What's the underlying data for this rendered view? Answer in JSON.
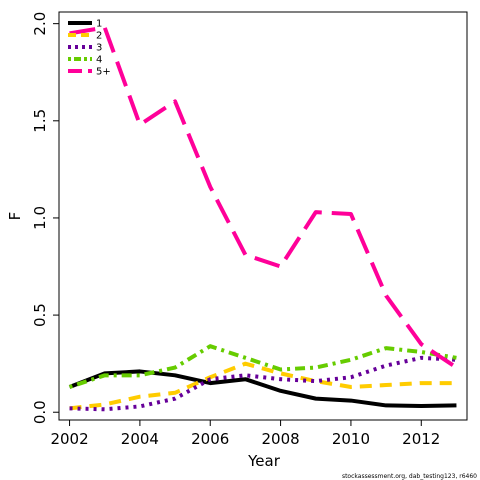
{
  "chart_data": {
    "type": "line",
    "title": "",
    "xlabel": "Year",
    "ylabel": "F",
    "x": [
      2002,
      2003,
      2004,
      2005,
      2006,
      2007,
      2008,
      2009,
      2010,
      2011,
      2012,
      2013
    ],
    "xlim": [
      2001.7,
      2013.3
    ],
    "ylim": [
      -0.04,
      2.06
    ],
    "xticks": [
      "2002",
      "2004",
      "2006",
      "2008",
      "2010",
      "2012"
    ],
    "yticks": [
      "0.0",
      "0.5",
      "1.0",
      "1.5",
      "2.0"
    ],
    "grid": false,
    "legend_position": "top-left",
    "series": [
      {
        "name": "1",
        "color": "#000000",
        "dash": "solid",
        "values": [
          0.13,
          0.2,
          0.21,
          0.19,
          0.15,
          0.17,
          0.11,
          0.07,
          0.06,
          0.035,
          0.032,
          0.035
        ]
      },
      {
        "name": "2",
        "color": "#ffcc00",
        "dash": "dashed",
        "values": [
          0.02,
          0.04,
          0.08,
          0.1,
          0.18,
          0.25,
          0.2,
          0.16,
          0.13,
          0.14,
          0.15,
          0.15
        ]
      },
      {
        "name": "3",
        "color": "#660099",
        "dash": "dotted",
        "values": [
          0.02,
          0.015,
          0.03,
          0.07,
          0.17,
          0.19,
          0.17,
          0.16,
          0.18,
          0.24,
          0.28,
          0.27
        ]
      },
      {
        "name": "4",
        "color": "#66cc00",
        "dash": "dotdash",
        "values": [
          0.13,
          0.19,
          0.19,
          0.23,
          0.34,
          0.28,
          0.22,
          0.23,
          0.27,
          0.33,
          0.31,
          0.28
        ]
      },
      {
        "name": "5+",
        "color": "#ff0099",
        "dash": "longdash",
        "values": [
          1.95,
          1.98,
          1.48,
          1.6,
          1.16,
          0.81,
          0.75,
          1.03,
          1.02,
          0.6,
          0.35,
          0.23
        ]
      }
    ]
  },
  "footer": {
    "note": "stockassessment.org, dab_testing123, r6460"
  }
}
